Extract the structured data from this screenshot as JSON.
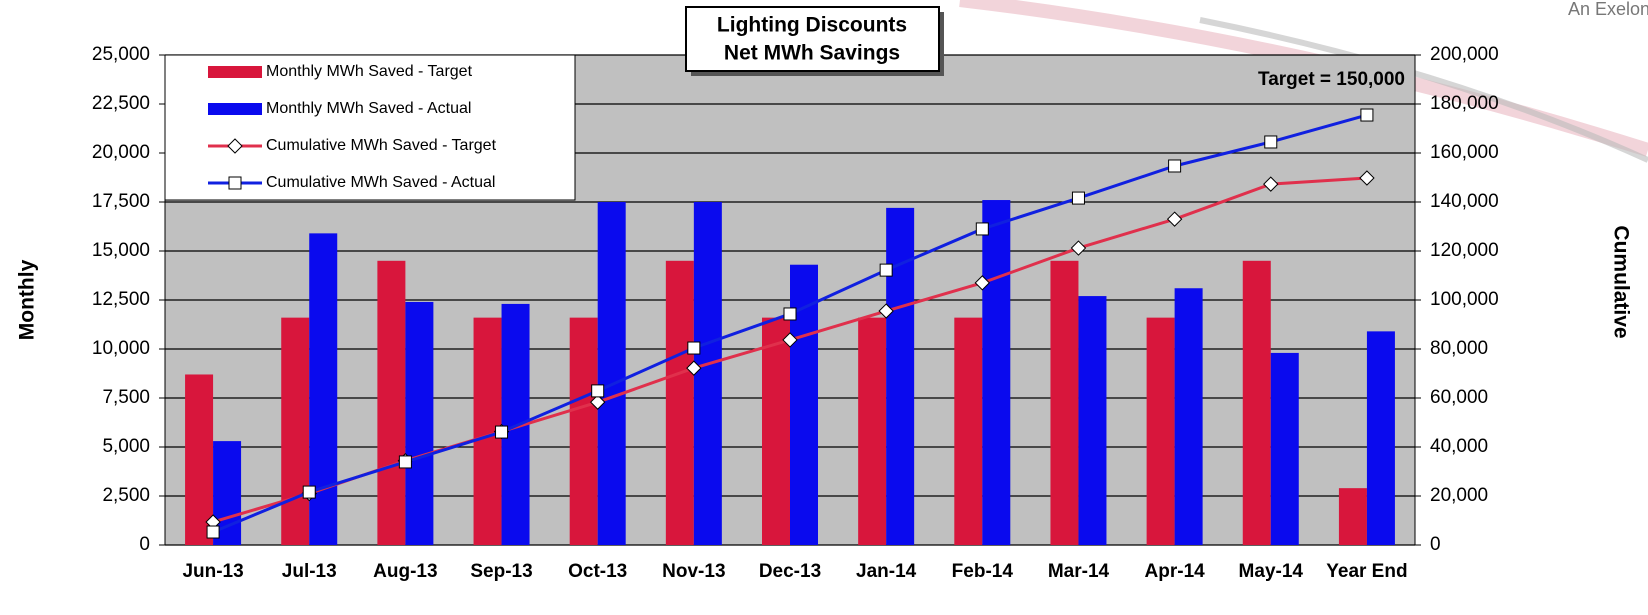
{
  "chart_data": {
    "type": "bar",
    "title": "Lighting Discounts",
    "subtitle": "Net MWh Savings",
    "annotation": "Target = 150,000",
    "logo_text": "An Exelon Co",
    "y_label": "Monthly",
    "y2_label": "Cumulative",
    "categories": [
      "Jun-13",
      "Jul-13",
      "Aug-13",
      "Sep-13",
      "Oct-13",
      "Nov-13",
      "Dec-13",
      "Jan-14",
      "Feb-14",
      "Mar-14",
      "Apr-14",
      "May-14",
      "Year End"
    ],
    "series": [
      {
        "name": "Monthly MWh Saved - Target",
        "type": "bar",
        "color": "#d8163c",
        "values": [
          8700,
          11600,
          14500,
          11600,
          11600,
          14500,
          11600,
          11600,
          11600,
          14500,
          11600,
          14500,
          2900
        ]
      },
      {
        "name": "Monthly MWh Saved - Actual",
        "type": "bar",
        "color": "#0a0aee",
        "values": [
          5300,
          15900,
          12400,
          12300,
          17500,
          17500,
          14300,
          17200,
          17600,
          12700,
          13100,
          9800,
          10900
        ]
      },
      {
        "name": "Cumulative MWh Saved - Target",
        "type": "line",
        "marker": "diamond",
        "axis": "y2",
        "color": "#e0304c",
        "values": [
          9400,
          21000,
          34400,
          46300,
          58300,
          72200,
          83700,
          95500,
          107000,
          121200,
          133000,
          147300,
          149800
        ]
      },
      {
        "name": "Cumulative MWh Saved - Actual",
        "type": "line",
        "marker": "square",
        "axis": "y2",
        "color": "#1020e0",
        "values": [
          5300,
          21600,
          33900,
          46100,
          62900,
          80400,
          94300,
          112200,
          129000,
          141600,
          154700,
          164500,
          175500
        ]
      }
    ],
    "ylim": [
      0,
      25000
    ],
    "yticks": [
      0,
      {
        "value": 2500,
        "label": "2,500"
      },
      {
        "value": 5000,
        "label": "5,000"
      },
      {
        "value": 7500,
        "label": "7,500"
      },
      {
        "value": 10000,
        "label": "10,000"
      },
      {
        "value": 12500,
        "label": "12,500"
      },
      {
        "value": 15000,
        "label": "15,000"
      },
      {
        "value": 17500,
        "label": "17,500"
      },
      {
        "value": 20000,
        "label": "20,000"
      },
      {
        "value": 22500,
        "label": "22,500"
      },
      {
        "value": 25000,
        "label": "25,000"
      }
    ],
    "y2lim": [
      0,
      200000
    ],
    "y2ticks": [
      0,
      {
        "value": 20000,
        "label": "20,000"
      },
      {
        "value": 40000,
        "label": "40,000"
      },
      {
        "value": 60000,
        "label": "60,000"
      },
      {
        "value": 80000,
        "label": "80,000"
      },
      {
        "value": 100000,
        "label": "100,000"
      },
      {
        "value": 120000,
        "label": "120,000"
      },
      {
        "value": 140000,
        "label": "140,000"
      },
      {
        "value": 160000,
        "label": "160,000"
      },
      {
        "value": 180000,
        "label": "180,000"
      },
      {
        "value": 200000,
        "label": "200,000"
      }
    ],
    "grid": true,
    "legend": "top-left"
  }
}
